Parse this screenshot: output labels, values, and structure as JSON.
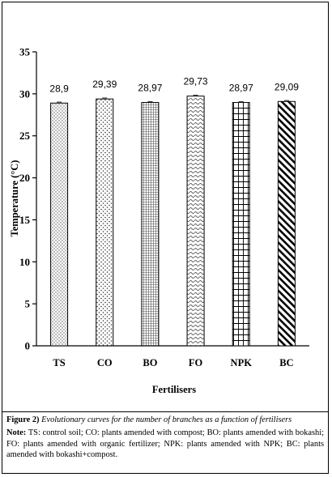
{
  "chart_data": {
    "type": "bar",
    "categories": [
      "TS",
      "CO",
      "BO",
      "FO",
      "NPK",
      "BC"
    ],
    "values": [
      28.9,
      29.39,
      28.97,
      29.73,
      28.97,
      29.09
    ],
    "value_labels": [
      "28,9",
      "29,39",
      "28,97",
      "29,73",
      "28,97",
      "29,09"
    ],
    "patterns": [
      "dots",
      "diamond-dots",
      "fine-grid",
      "waves",
      "grid",
      "diagonal"
    ],
    "xlabel": "Fertilisers",
    "ylabel": "Temperature (°C)",
    "ylim": [
      0,
      35
    ],
    "yticks": [
      0,
      5,
      10,
      15,
      20,
      25,
      30,
      35
    ],
    "grid": false,
    "error_bars": true
  },
  "caption": {
    "figure_label": "Figure 2)",
    "figure_text": "Evolutionary curves for the number of branches as a function of fertilisers",
    "note_label": "Note:",
    "note_text": "TS: control soil; CO: plants amended with compost; BO: plants amended with bokashi; FO: plants amended with organic fertilizer; NPK: plants amended with NPK; BC: plants amended with bokashi+compost."
  }
}
